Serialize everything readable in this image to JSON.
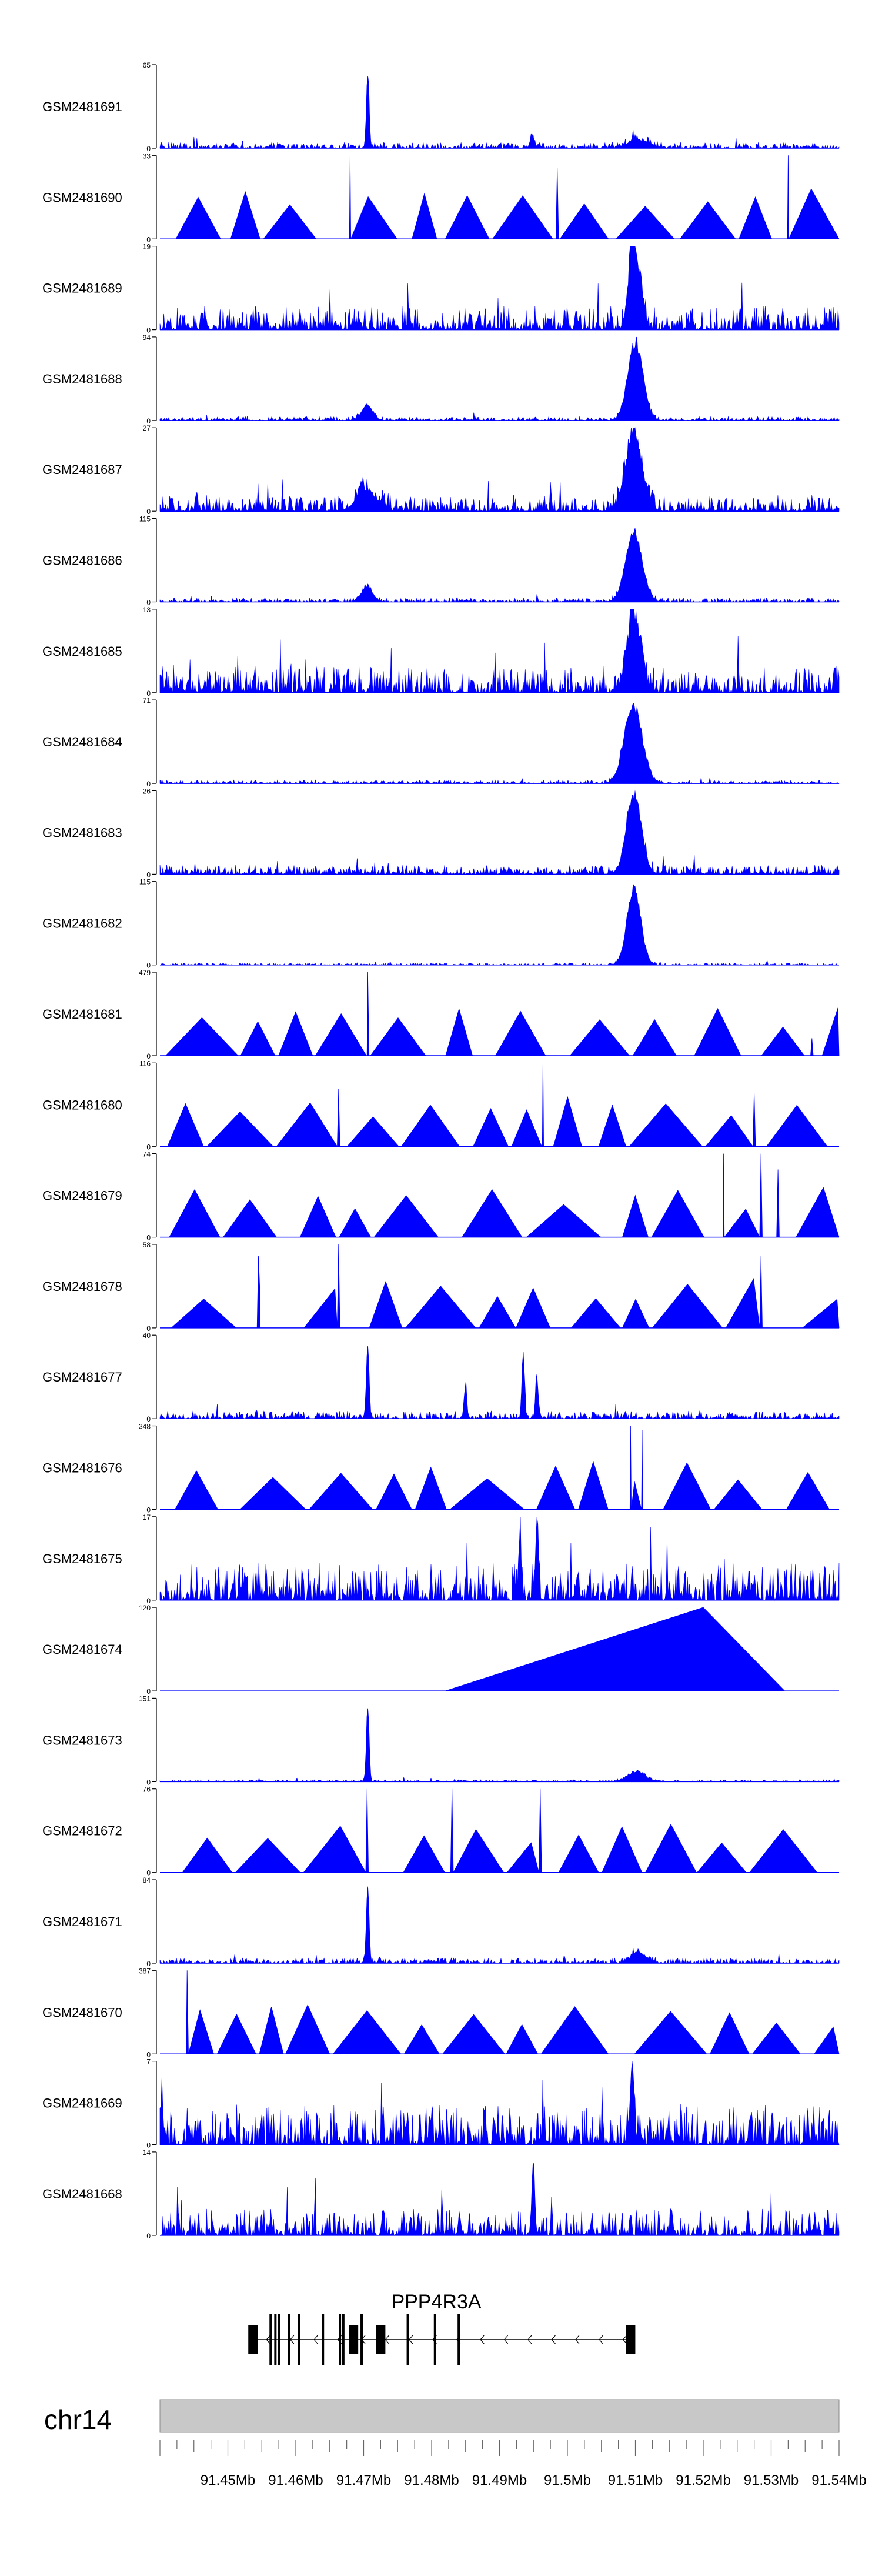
{
  "chart_data": {
    "type": "area",
    "title": "",
    "chromosome": "chr14",
    "xlim": [
      91.44,
      91.54
    ],
    "xunit": "Mb",
    "x_ticks": [
      "91.45Mb",
      "91.46Mb",
      "91.47Mb",
      "91.48Mb",
      "91.49Mb",
      "91.5Mb",
      "91.51Mb",
      "91.52Mb",
      "91.53Mb",
      "91.54Mb"
    ],
    "x_tick_values": [
      91.45,
      91.46,
      91.47,
      91.48,
      91.49,
      91.5,
      91.51,
      91.52,
      91.53,
      91.54
    ],
    "gene": {
      "name": "PPP4R3A",
      "strand": "-",
      "start": 91.4537,
      "end": 91.5097,
      "exons": [
        91.4537,
        91.4563,
        91.457,
        91.4575,
        91.459,
        91.4605,
        91.464,
        91.4665,
        91.467,
        91.4685,
        91.4697,
        91.4725,
        91.4765,
        91.4805,
        91.484,
        91.5093
      ]
    },
    "series": [
      {
        "name": "GSM2481691",
        "ymax": 65,
        "style": "noise",
        "noise": 0.045,
        "peaks": [
          [
            91.4706,
            65,
            0.0002
          ],
          [
            91.4948,
            10,
            0.0003
          ],
          [
            91.5105,
            7,
            0.0015
          ]
        ]
      },
      {
        "name": "GSM2481690",
        "ymax": 33,
        "style": "sparse",
        "noise": 0.4,
        "peaks": [
          [
            91.468,
            33,
            0.0001
          ],
          [
            91.4985,
            28,
            0.0002
          ],
          [
            91.5325,
            33,
            0.0001
          ]
        ]
      },
      {
        "name": "GSM2481689",
        "ymax": 19,
        "style": "noise",
        "noise": 0.18,
        "peaks": [
          [
            91.5095,
            19,
            0.0003
          ],
          [
            91.51,
            17,
            0.0008
          ]
        ]
      },
      {
        "name": "GSM2481688",
        "ymax": 94,
        "style": "noise",
        "noise": 0.03,
        "peaks": [
          [
            91.4705,
            18,
            0.0008
          ],
          [
            91.51,
            94,
            0.0011
          ]
        ]
      },
      {
        "name": "GSM2481687",
        "ymax": 27,
        "style": "noise",
        "noise": 0.12,
        "peaks": [
          [
            91.4705,
            7,
            0.0015
          ],
          [
            91.5098,
            27,
            0.0012
          ]
        ]
      },
      {
        "name": "GSM2481686",
        "ymax": 115,
        "style": "noise",
        "noise": 0.03,
        "peaks": [
          [
            91.4705,
            22,
            0.0008
          ],
          [
            91.5098,
            103,
            0.0012
          ]
        ]
      },
      {
        "name": "GSM2481685",
        "ymax": 13,
        "style": "noise",
        "noise": 0.2,
        "peaks": [
          [
            91.5098,
            13,
            0.001
          ]
        ]
      },
      {
        "name": "GSM2481684",
        "ymax": 71,
        "style": "noise",
        "noise": 0.025,
        "peaks": [
          [
            91.5097,
            71,
            0.0013
          ]
        ]
      },
      {
        "name": "GSM2481683",
        "ymax": 26,
        "style": "noise",
        "noise": 0.07,
        "peaks": [
          [
            91.5098,
            26,
            0.0011
          ]
        ]
      },
      {
        "name": "GSM2481682",
        "ymax": 115,
        "style": "noise",
        "noise": 0.015,
        "peaks": [
          [
            91.5098,
            115,
            0.001
          ]
        ]
      },
      {
        "name": "GSM2481681",
        "ymax": 479,
        "style": "sparse",
        "noise": 0.0,
        "peaks": [
          [
            91.4706,
            479,
            0.0002
          ],
          [
            91.536,
            100,
            0.0002
          ]
        ]
      },
      {
        "name": "GSM2481680",
        "ymax": 116,
        "style": "sparse",
        "noise": 0.0,
        "peaks": [
          [
            91.4663,
            80,
            0.0002
          ],
          [
            91.4964,
            116,
            0.0001
          ],
          [
            91.5275,
            75,
            0.0002
          ]
        ]
      },
      {
        "name": "GSM2481679",
        "ymax": 74,
        "style": "sparse",
        "noise": 0.0,
        "peaks": [
          [
            91.523,
            74,
            0.0001
          ],
          [
            91.5285,
            74,
            0.0002
          ],
          [
            91.531,
            60,
            0.0002
          ]
        ]
      },
      {
        "name": "GSM2481678",
        "ymax": 58,
        "style": "sparse",
        "noise": 0.0,
        "peaks": [
          [
            91.4663,
            58,
            0.0002
          ],
          [
            91.4545,
            50,
            0.0002
          ],
          [
            91.5285,
            50,
            0.0002
          ]
        ]
      },
      {
        "name": "GSM2481677",
        "ymax": 40,
        "style": "noise",
        "noise": 0.06,
        "peaks": [
          [
            91.4706,
            40,
            0.0002
          ],
          [
            91.485,
            16,
            0.0002
          ],
          [
            91.4935,
            32,
            0.0002
          ],
          [
            91.4955,
            22,
            0.0002
          ]
        ]
      },
      {
        "name": "GSM2481676",
        "ymax": 348,
        "style": "sparse",
        "noise": 0.0,
        "peaks": [
          [
            91.5093,
            348,
            0.0001
          ],
          [
            91.511,
            330,
            0.0001
          ]
        ]
      },
      {
        "name": "GSM2481675",
        "ymax": 17,
        "style": "noise",
        "noise": 0.28,
        "peaks": [
          [
            91.4955,
            17,
            0.0002
          ],
          [
            91.493,
            14,
            0.0002
          ]
        ]
      },
      {
        "name": "GSM2481674",
        "ymax": 120,
        "style": "sparse",
        "noise": 0.0,
        "peaks": []
      },
      {
        "name": "GSM2481673",
        "ymax": 151,
        "style": "noise",
        "noise": 0.015,
        "peaks": [
          [
            91.4706,
            151,
            0.0002
          ],
          [
            91.5102,
            20,
            0.0012
          ]
        ]
      },
      {
        "name": "GSM2481672",
        "ymax": 76,
        "style": "sparse",
        "noise": 0.0,
        "peaks": [
          [
            91.4705,
            76,
            0.0002
          ],
          [
            91.483,
            76,
            0.0002
          ],
          [
            91.496,
            76,
            0.0002
          ]
        ]
      },
      {
        "name": "GSM2481671",
        "ymax": 84,
        "style": "noise",
        "noise": 0.04,
        "peaks": [
          [
            91.4706,
            84,
            0.0002
          ],
          [
            91.5105,
            10,
            0.0012
          ]
        ]
      },
      {
        "name": "GSM2481670",
        "ymax": 387,
        "style": "sparse",
        "noise": 0.0,
        "peaks": [
          [
            91.444,
            387,
            0.0002
          ]
        ]
      },
      {
        "name": "GSM2481669",
        "ymax": 7,
        "style": "noise",
        "noise": 0.3,
        "peaks": [
          [
            91.5095,
            7,
            0.0003
          ]
        ]
      },
      {
        "name": "GSM2481668",
        "ymax": 14,
        "style": "noise",
        "noise": 0.2,
        "peaks": [
          [
            91.495,
            14,
            0.0002
          ]
        ]
      }
    ]
  }
}
